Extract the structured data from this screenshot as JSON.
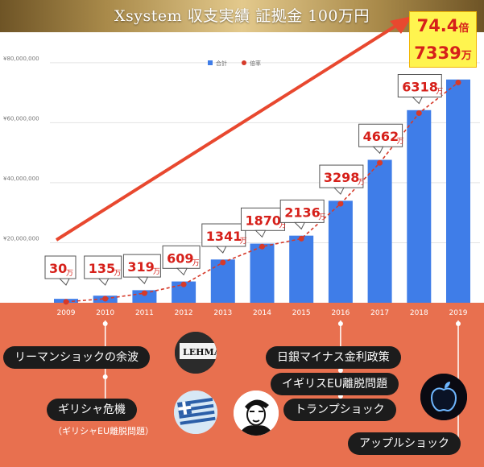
{
  "page": {
    "title": "Xsystem 収支実績 証拠金 100万円"
  },
  "chart_data": {
    "type": "bar",
    "categories": [
      "2009",
      "2010",
      "2011",
      "2012",
      "2013",
      "2014",
      "2015",
      "2016",
      "2017",
      "2018",
      "2019"
    ],
    "series": [
      {
        "name": "合計",
        "type": "bar",
        "color": "#3f7de8",
        "values": [
          1300000,
          2350000,
          4190000,
          7090000,
          14410000,
          19700000,
          22360000,
          33980000,
          47620000,
          64180000,
          74390000
        ]
      },
      {
        "name": "倍率",
        "type": "line",
        "color": "#d63a2a",
        "values": [
          300000,
          1350000,
          3190000,
          6090000,
          13410000,
          18700000,
          21360000,
          32980000,
          46620000,
          63180000,
          73390000
        ]
      }
    ],
    "yticks": [
      "¥80,000,000",
      "¥60,000,000",
      "¥40,000,000",
      "¥20,000,000"
    ],
    "ytick_values": [
      80000000,
      60000000,
      40000000,
      20000000
    ],
    "ylim": [
      0,
      88000000
    ],
    "grid": true,
    "legend": "top-center",
    "callouts": [
      {
        "value": "30",
        "unit": "万"
      },
      {
        "value": "135",
        "unit": "万"
      },
      {
        "value": "319",
        "unit": "万"
      },
      {
        "value": "609",
        "unit": "万"
      },
      {
        "value": "1341",
        "unit": "万"
      },
      {
        "value": "1870",
        "unit": "万"
      },
      {
        "value": "2136",
        "unit": "万"
      },
      {
        "value": "3298",
        "unit": "万"
      },
      {
        "value": "4662",
        "unit": "万"
      },
      {
        "value": "6318",
        "unit": "万"
      }
    ],
    "final_callout": {
      "ratio": "74.4",
      "ratio_unit": "倍",
      "amount": "7339",
      "amount_unit": "万"
    }
  },
  "events": [
    {
      "label": "リーマンショックの余波",
      "year": "2010"
    },
    {
      "label": "ギリシャ危機",
      "sublabel": "（ギリシャEU離脱問題）",
      "year": "2010"
    },
    {
      "label": "日銀マイナス金利政策",
      "year": "2016"
    },
    {
      "label": "イギリスEU離脱問題",
      "year": "2016"
    },
    {
      "label": "トランプショック",
      "year": "2016"
    },
    {
      "label": "アップルショック",
      "year": "2019"
    }
  ],
  "photos": {
    "lehman_sign_text": "LEHMA"
  },
  "colors": {
    "bar": "#3f7de8",
    "line": "#d63a2a",
    "panel": "#e8704f",
    "arrow": "#e8482f",
    "callout_bg": "#fff44f"
  }
}
